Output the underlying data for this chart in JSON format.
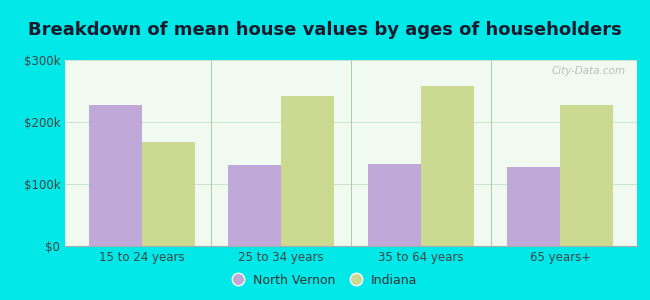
{
  "title": "Breakdown of mean house values by ages of householders",
  "categories": [
    "15 to 24 years",
    "25 to 34 years",
    "35 to 64 years",
    "65 years+"
  ],
  "north_vernon": [
    228000,
    130000,
    133000,
    128000
  ],
  "indiana": [
    168000,
    242000,
    258000,
    228000
  ],
  "ylim": [
    0,
    300000
  ],
  "yticks": [
    0,
    100000,
    200000,
    300000
  ],
  "ytick_labels": [
    "$0",
    "$100k",
    "$200k",
    "$300k"
  ],
  "bar_color_nv": "#c0a8d8",
  "bar_color_in": "#ccd990",
  "background_top": "#f0faf0",
  "background_bottom": "#e0f5e0",
  "outer_background": "#00e8e8",
  "legend_nv": "North Vernon",
  "legend_in": "Indiana",
  "title_fontsize": 13,
  "bar_width": 0.38,
  "watermark": "City-Data.com"
}
